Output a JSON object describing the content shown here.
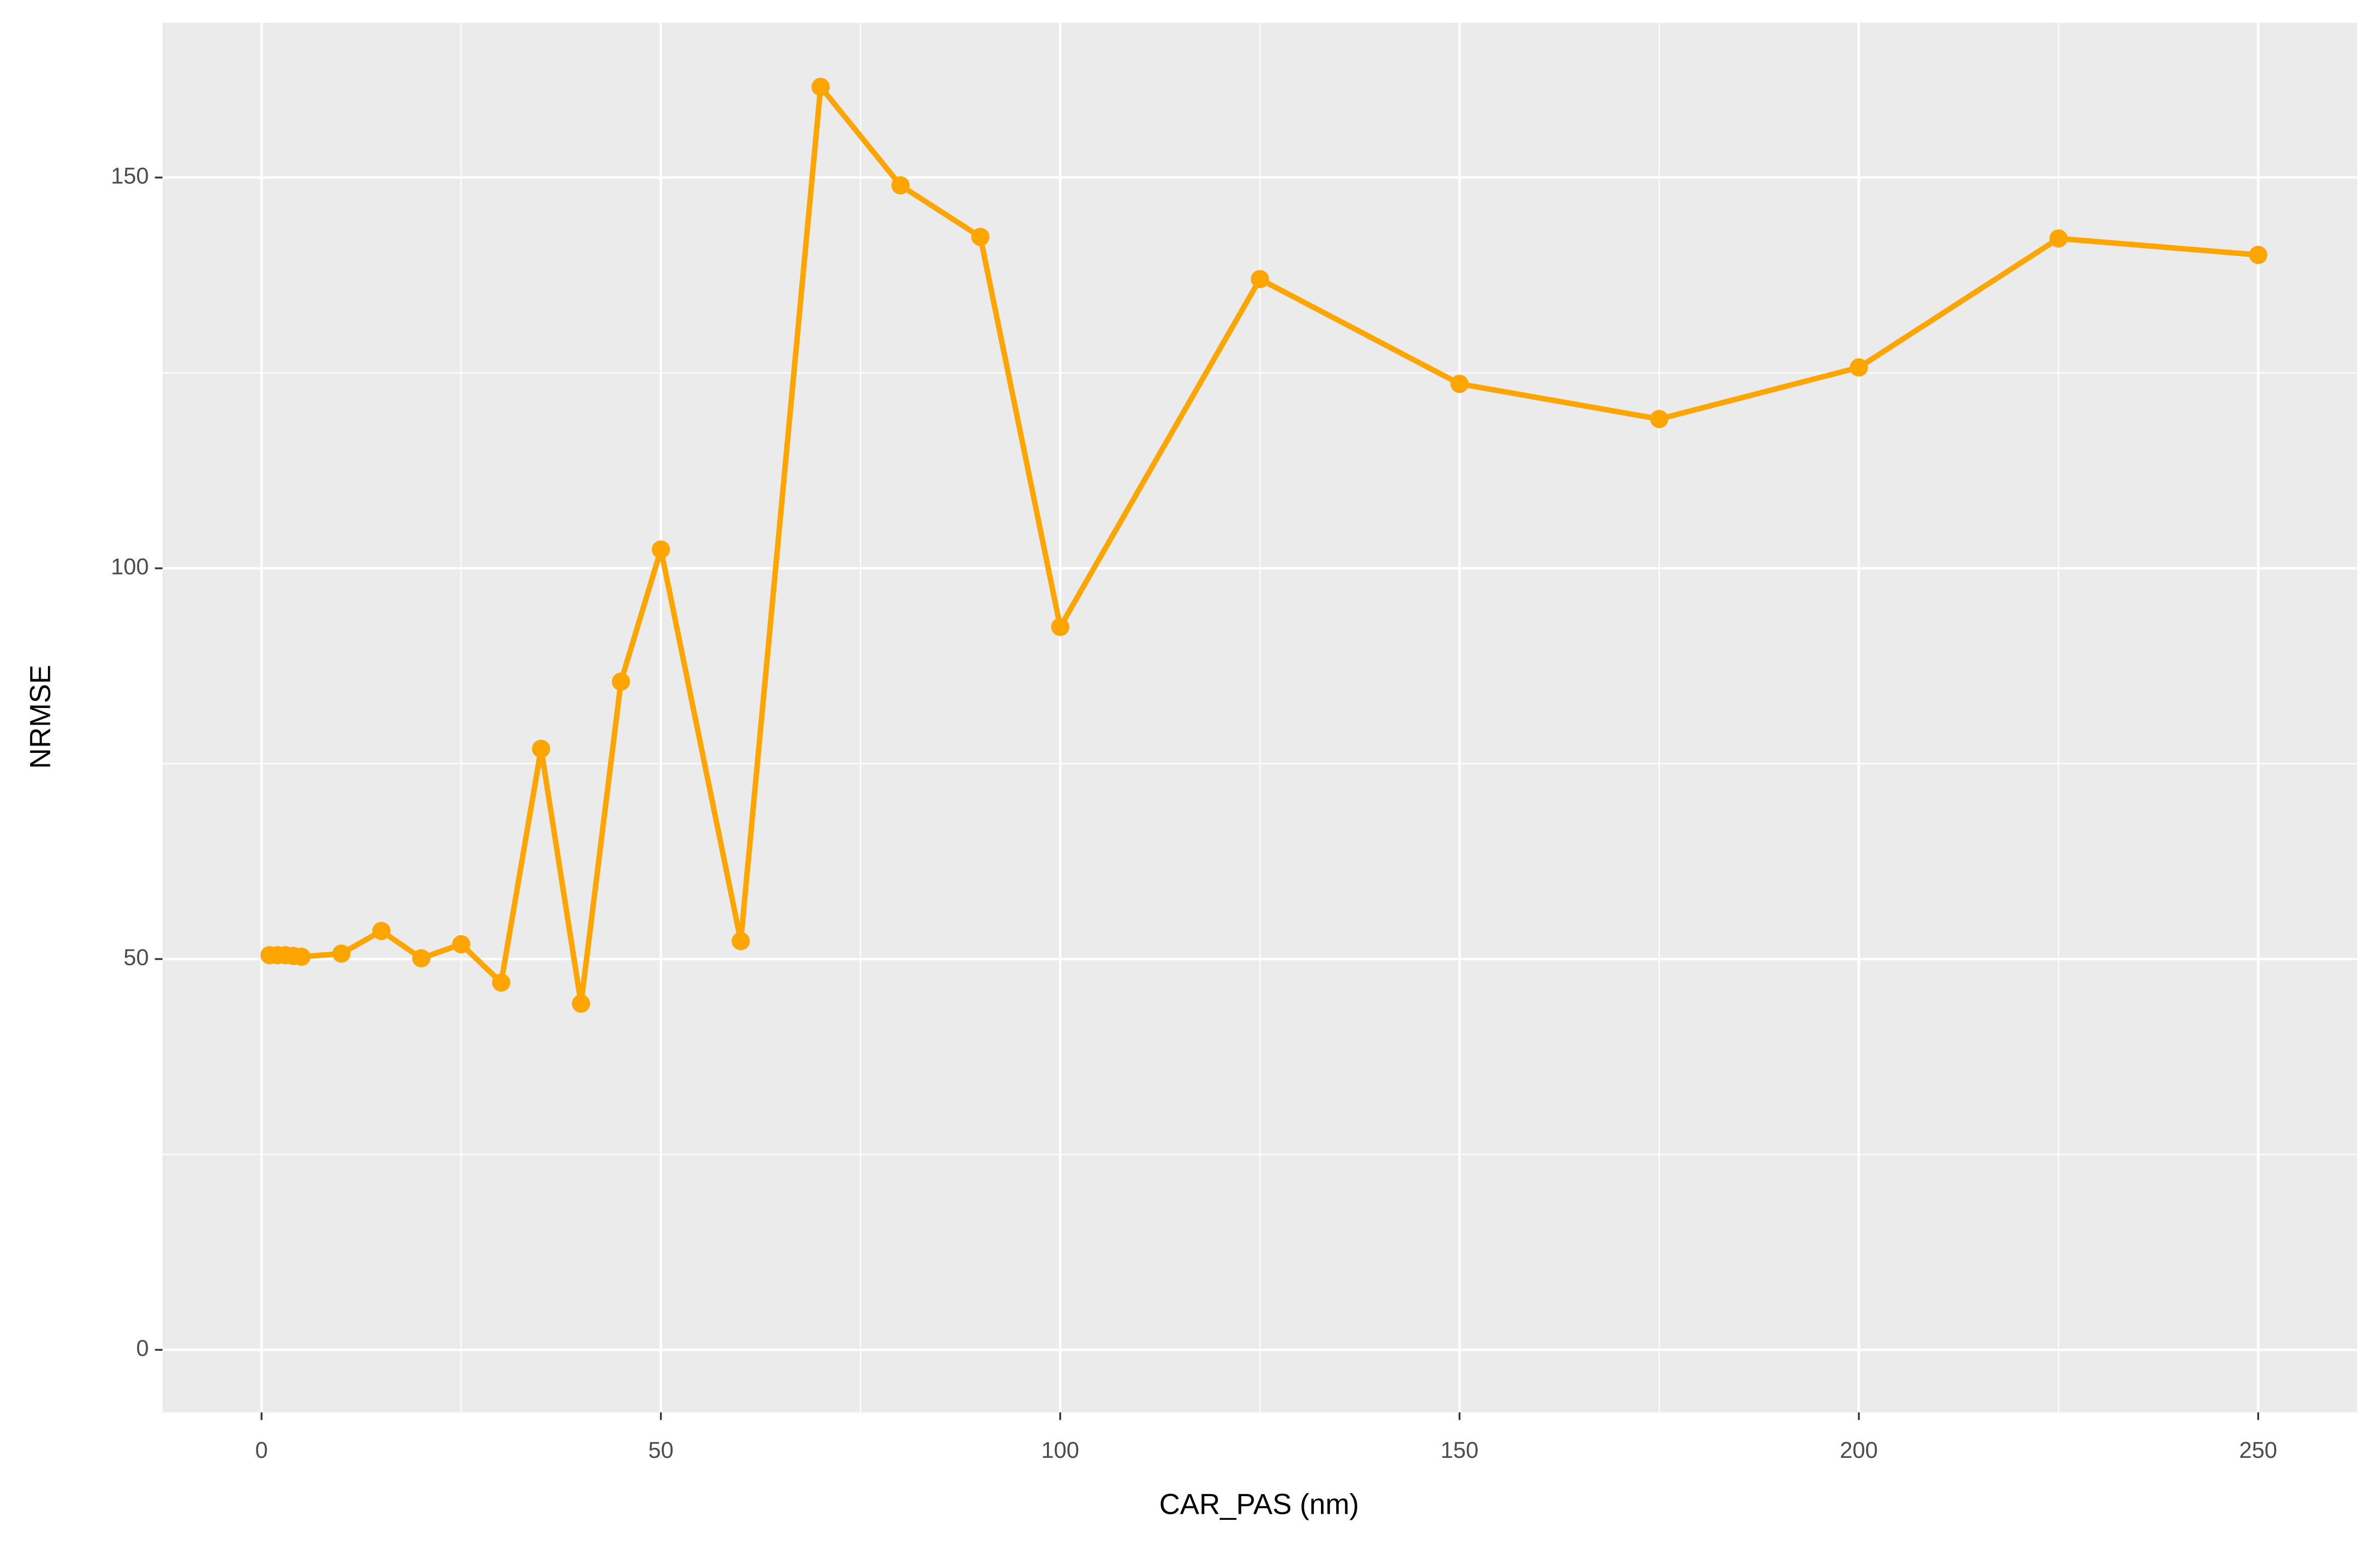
{
  "chart_data": {
    "type": "line",
    "x_label": "CAR_PAS (nm)",
    "y_label": "NRMSE",
    "x": [
      1,
      2,
      3,
      4,
      5,
      10,
      15,
      20,
      25,
      30,
      35,
      40,
      45,
      50,
      60,
      70,
      80,
      90,
      100,
      125,
      150,
      175,
      200,
      225,
      250
    ],
    "series": [
      {
        "name": "NRMSE",
        "color": "#FFA500",
        "values": [
          50.5,
          50.5,
          50.5,
          50.4,
          50.3,
          50.7,
          53.6,
          50.1,
          51.9,
          47.0,
          76.9,
          44.3,
          85.5,
          102.4,
          52.3,
          161.6,
          149.0,
          142.4,
          92.5,
          137.0,
          123.6,
          119.1,
          125.7,
          142.2,
          140.1
        ]
      }
    ],
    "xlim": [
      -12.4,
      262.4
    ],
    "xticks": [
      0,
      50,
      100,
      150,
      200,
      250
    ],
    "ylim": [
      -8.0,
      169.8
    ],
    "yticks": [
      0,
      50,
      100,
      150
    ],
    "grid": true,
    "minor_grid": true,
    "markers": true
  }
}
